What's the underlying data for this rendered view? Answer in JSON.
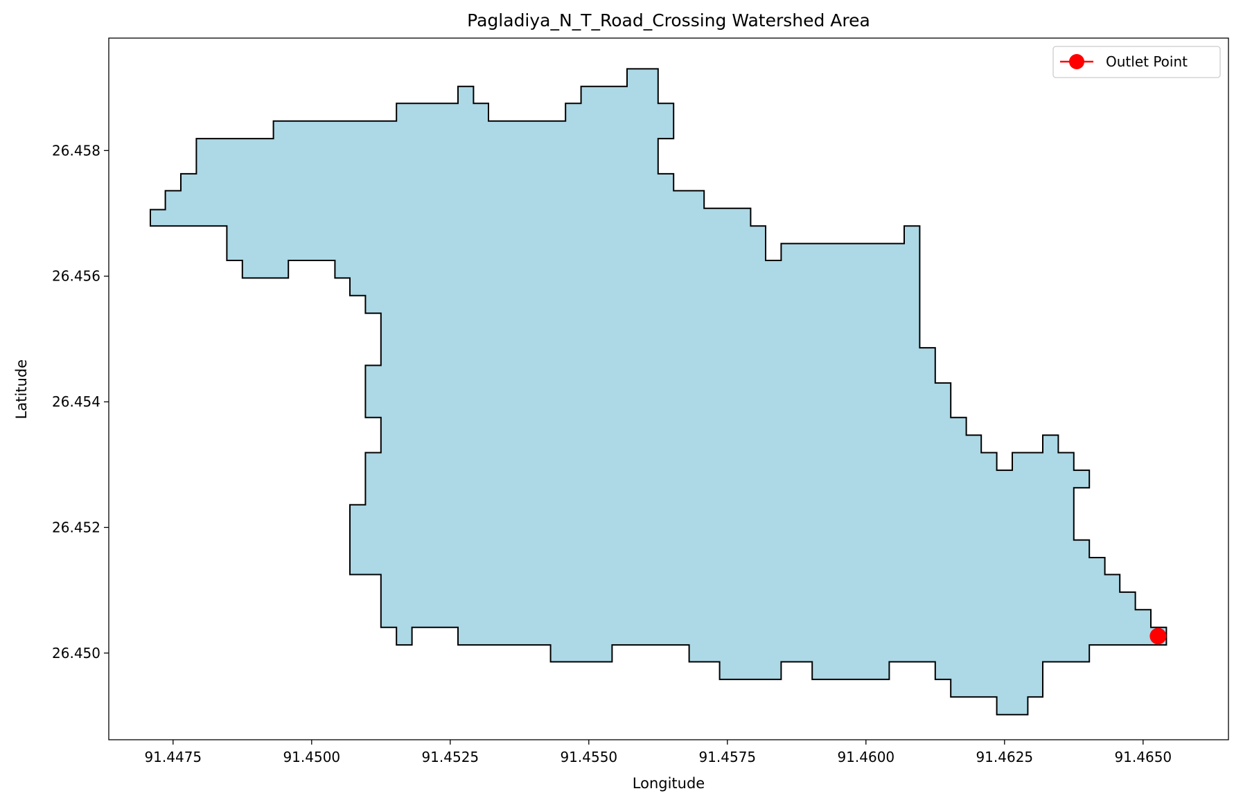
{
  "chart_data": {
    "type": "area",
    "title": "Pagladiya_N_T_Road_Crossing Watershed Area",
    "xlabel": "Longitude",
    "ylabel": "Latitude",
    "xlim": [
      91.44634,
      91.46654
    ],
    "ylim": [
      26.44862,
      26.45979
    ],
    "xticks": [
      "91.4475",
      "91.4500",
      "91.4525",
      "91.4550",
      "91.4575",
      "91.4600",
      "91.4625",
      "91.4650"
    ],
    "yticks": [
      "26.450",
      "26.452",
      "26.454",
      "26.456",
      "26.458"
    ],
    "grid": false,
    "legend": {
      "placement": "top-right",
      "entries": [
        {
          "label": "Outlet Point"
        }
      ]
    },
    "colors": {
      "fill": "#add8e6",
      "edge": "#000000",
      "outlet": "#ff0000"
    },
    "watershed_polygon": [
      [
        91.44709,
        26.45706
      ],
      [
        91.44736,
        26.45706
      ],
      [
        91.44736,
        26.45736
      ],
      [
        91.44764,
        26.45736
      ],
      [
        91.44764,
        26.45763
      ],
      [
        91.44792,
        26.45763
      ],
      [
        91.44792,
        26.45819
      ],
      [
        91.44931,
        26.45819
      ],
      [
        91.44931,
        26.45847
      ],
      [
        91.45153,
        26.45847
      ],
      [
        91.45153,
        26.45875
      ],
      [
        91.45264,
        26.45875
      ],
      [
        91.45264,
        26.45902
      ],
      [
        91.45292,
        26.45902
      ],
      [
        91.45292,
        26.45875
      ],
      [
        91.45319,
        26.45875
      ],
      [
        91.45319,
        26.45847
      ],
      [
        91.45458,
        26.45847
      ],
      [
        91.45458,
        26.45875
      ],
      [
        91.45486,
        26.45875
      ],
      [
        91.45486,
        26.45902
      ],
      [
        91.45569,
        26.45902
      ],
      [
        91.45569,
        26.4593
      ],
      [
        91.45625,
        26.4593
      ],
      [
        91.45625,
        26.45875
      ],
      [
        91.45653,
        26.45875
      ],
      [
        91.45653,
        26.45819
      ],
      [
        91.45625,
        26.45819
      ],
      [
        91.45625,
        26.45763
      ],
      [
        91.45653,
        26.45763
      ],
      [
        91.45653,
        26.45736
      ],
      [
        91.45708,
        26.45736
      ],
      [
        91.45708,
        26.45708
      ],
      [
        91.45792,
        26.45708
      ],
      [
        91.45792,
        26.4568
      ],
      [
        91.45819,
        26.4568
      ],
      [
        91.45819,
        26.45625
      ],
      [
        91.45847,
        26.45625
      ],
      [
        91.45847,
        26.45652
      ],
      [
        91.46069,
        26.45652
      ],
      [
        91.46069,
        26.4568
      ],
      [
        91.46097,
        26.4568
      ],
      [
        91.46097,
        26.45486
      ],
      [
        91.46125,
        26.45486
      ],
      [
        91.46125,
        26.4543
      ],
      [
        91.46153,
        26.4543
      ],
      [
        91.46153,
        26.45375
      ],
      [
        91.46181,
        26.45375
      ],
      [
        91.46181,
        26.45347
      ],
      [
        91.46208,
        26.45347
      ],
      [
        91.46208,
        26.45319
      ],
      [
        91.46236,
        26.45319
      ],
      [
        91.46236,
        26.45291
      ],
      [
        91.46264,
        26.45291
      ],
      [
        91.46264,
        26.45319
      ],
      [
        91.46319,
        26.45319
      ],
      [
        91.46319,
        26.45347
      ],
      [
        91.46347,
        26.45347
      ],
      [
        91.46347,
        26.45319
      ],
      [
        91.46375,
        26.45319
      ],
      [
        91.46375,
        26.45291
      ],
      [
        91.46403,
        26.45291
      ],
      [
        91.46403,
        26.45263
      ],
      [
        91.46375,
        26.45263
      ],
      [
        91.46375,
        26.4518
      ],
      [
        91.46403,
        26.4518
      ],
      [
        91.46403,
        26.45152
      ],
      [
        91.46431,
        26.45152
      ],
      [
        91.46431,
        26.45125
      ],
      [
        91.46458,
        26.45125
      ],
      [
        91.46458,
        26.45097
      ],
      [
        91.46486,
        26.45097
      ],
      [
        91.46486,
        26.45069
      ],
      [
        91.46514,
        26.45069
      ],
      [
        91.46514,
        26.45041
      ],
      [
        91.46542,
        26.45041
      ],
      [
        91.46542,
        26.45013
      ],
      [
        91.46403,
        26.45013
      ],
      [
        91.46403,
        26.44986
      ],
      [
        91.46319,
        26.44986
      ],
      [
        91.46319,
        26.4493
      ],
      [
        91.46292,
        26.4493
      ],
      [
        91.46292,
        26.44902
      ],
      [
        91.46236,
        26.44902
      ],
      [
        91.46236,
        26.4493
      ],
      [
        91.46153,
        26.4493
      ],
      [
        91.46153,
        26.44958
      ],
      [
        91.46125,
        26.44958
      ],
      [
        91.46125,
        26.44986
      ],
      [
        91.46042,
        26.44986
      ],
      [
        91.46042,
        26.44958
      ],
      [
        91.45903,
        26.44958
      ],
      [
        91.45903,
        26.44986
      ],
      [
        91.45847,
        26.44986
      ],
      [
        91.45847,
        26.44958
      ],
      [
        91.45736,
        26.44958
      ],
      [
        91.45736,
        26.44986
      ],
      [
        91.45681,
        26.44986
      ],
      [
        91.45681,
        26.45013
      ],
      [
        91.45542,
        26.45013
      ],
      [
        91.45542,
        26.44986
      ],
      [
        91.45431,
        26.44986
      ],
      [
        91.45431,
        26.45013
      ],
      [
        91.45264,
        26.45013
      ],
      [
        91.45264,
        26.45041
      ],
      [
        91.45181,
        26.45041
      ],
      [
        91.45181,
        26.45013
      ],
      [
        91.45153,
        26.45013
      ],
      [
        91.45153,
        26.45041
      ],
      [
        91.45125,
        26.45041
      ],
      [
        91.45125,
        26.45125
      ],
      [
        91.45069,
        26.45125
      ],
      [
        91.45069,
        26.45236
      ],
      [
        91.45097,
        26.45236
      ],
      [
        91.45097,
        26.45319
      ],
      [
        91.45125,
        26.45319
      ],
      [
        91.45125,
        26.45375
      ],
      [
        91.45097,
        26.45375
      ],
      [
        91.45097,
        26.45458
      ],
      [
        91.45125,
        26.45458
      ],
      [
        91.45125,
        26.45541
      ],
      [
        91.45097,
        26.45541
      ],
      [
        91.45097,
        26.45569
      ],
      [
        91.45069,
        26.45569
      ],
      [
        91.45069,
        26.45597
      ],
      [
        91.45042,
        26.45597
      ],
      [
        91.45042,
        26.45625
      ],
      [
        91.44958,
        26.45625
      ],
      [
        91.44958,
        26.45597
      ],
      [
        91.44875,
        26.45597
      ],
      [
        91.44875,
        26.45625
      ],
      [
        91.44847,
        26.45625
      ],
      [
        91.44847,
        26.4568
      ],
      [
        91.44709,
        26.4568
      ]
    ],
    "outlet_point": [
      91.46527,
      26.45027
    ]
  }
}
